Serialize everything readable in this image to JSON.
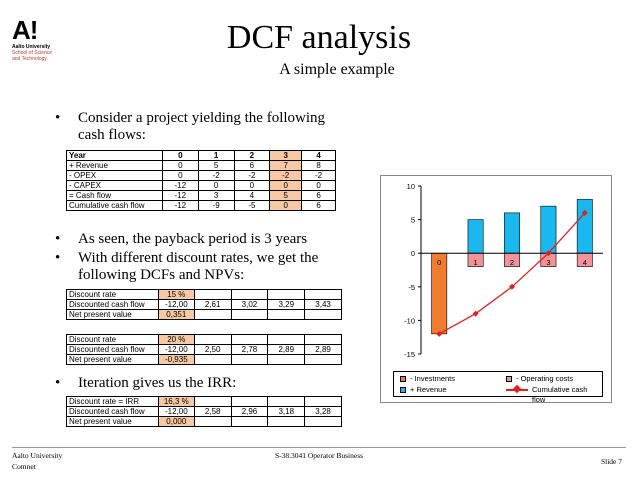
{
  "logo": {
    "mark": "A!",
    "line1": "Aalto University",
    "line2": "School of Science",
    "line3": "and Technology"
  },
  "title": "DCF analysis",
  "subtitle": "A simple example",
  "bullets": [
    "Consider a project yielding the following",
    "cash flows:",
    "As seen, the payback period is 3 years",
    "With different discount rates, we get the",
    "following DCFs and NPVs:",
    "Iteration gives us the IRR:"
  ],
  "bullet_char": "•",
  "cashflow_table": {
    "header": [
      "Year",
      "0",
      "1",
      "2",
      "3",
      "4"
    ],
    "rows": [
      [
        "+ Revenue",
        "0",
        "5",
        "6",
        "7",
        "8"
      ],
      [
        "- OPEX",
        "0",
        "-2",
        "-2",
        "-2",
        "-2"
      ],
      [
        "- CAPEX",
        "-12",
        "0",
        "0",
        "0",
        "0"
      ],
      [
        "= Cash flow",
        "-12",
        "3",
        "4",
        "5",
        "6"
      ],
      [
        "Cumulative cash flow",
        "-12",
        "-9",
        "-5",
        "0",
        "6"
      ]
    ]
  },
  "discount_tables": [
    {
      "rate_label": "Discount rate",
      "rate_value": "15 %",
      "dcf_label": "Discounted cash flow",
      "dcf_values": [
        "-12,00",
        "2,61",
        "3,02",
        "3,29",
        "3,43"
      ],
      "npv_label": "Net present value",
      "npv_value": "0,351"
    },
    {
      "rate_label": "Discount rate",
      "rate_value": "20 %",
      "dcf_label": "Discounted cash flow",
      "dcf_values": [
        "-12,00",
        "2,50",
        "2,78",
        "2,89",
        "2,89"
      ],
      "npv_label": "Net present value",
      "npv_value": "-0,935"
    },
    {
      "rate_label": "Discount rate = IRR",
      "rate_value": "16,3 %",
      "dcf_label": "Discounted cash flow",
      "dcf_values": [
        "-12,00",
        "2,58",
        "2,96",
        "3,18",
        "3,28"
      ],
      "npv_label": "Net present value",
      "npv_value": "0,000"
    }
  ],
  "chart_data": {
    "type": "bar",
    "categories": [
      "0",
      "1",
      "2",
      "3",
      "4"
    ],
    "ylim": [
      -15,
      10
    ],
    "yticks": [
      "10",
      "5",
      "0",
      "-5",
      "-10",
      "-15"
    ],
    "series": [
      {
        "name": "- Investments",
        "kind": "bar",
        "values": [
          -12,
          0,
          0,
          0,
          0
        ],
        "color": "#f07c30"
      },
      {
        "name": "- Operating costs",
        "kind": "bar",
        "values": [
          0,
          -2,
          -2,
          -2,
          -2
        ],
        "color": "#f2939a"
      },
      {
        "name": "+ Revenue",
        "kind": "bar",
        "values": [
          0,
          5,
          6,
          7,
          8
        ],
        "color": "#19b8ee"
      },
      {
        "name": "Cumulative cash flow",
        "kind": "line",
        "values": [
          -12,
          -9,
          -5,
          0,
          6
        ],
        "color": "#e02020"
      }
    ],
    "legend": "bottom"
  },
  "footer": {
    "left1": "Aalto University",
    "left2": "Comnet",
    "center": "S-38.3041 Operator Business",
    "right": "Slide 7"
  }
}
